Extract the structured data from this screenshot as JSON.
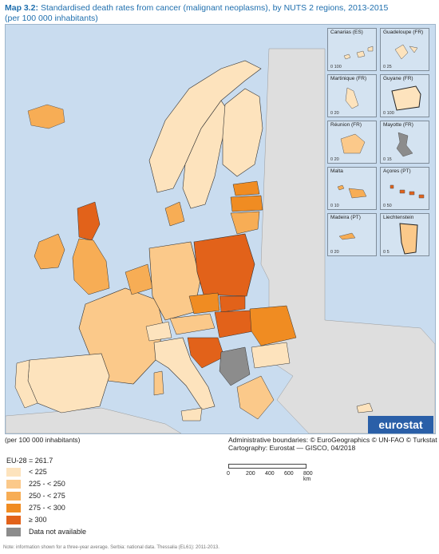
{
  "title_prefix": "Map 3.2:",
  "title_text": "Standardised death rates from cancer (malignant neoplasms), by NUTS 2 regions, 2013-2015",
  "subtitle": "(per 100 000 inhabitants)",
  "insets": [
    {
      "name": "Canarias (ES)",
      "scale": "0   100"
    },
    {
      "name": "Guadeloupe (FR)",
      "scale": "0   25"
    },
    {
      "name": "Martinique (FR)",
      "scale": "0   20"
    },
    {
      "name": "Guyane (FR)",
      "scale": "0   100"
    },
    {
      "name": "Réunion (FR)",
      "scale": "0   20"
    },
    {
      "name": "Mayotte (FR)",
      "scale": "0   15"
    },
    {
      "name": "Malta",
      "scale": "0   10"
    },
    {
      "name": "Açores (PT)",
      "scale": "0   50"
    },
    {
      "name": "Madeira (PT)",
      "scale": "0   20"
    },
    {
      "name": "Liechtenstein",
      "scale": "0   5"
    }
  ],
  "logo": "eurostat",
  "units_note": "(per 100 000 inhabitants)",
  "boundaries_note": "Administrative boundaries: © EuroGeographics © UN-FAO © Turkstat",
  "cartography_note": "Cartography: Eurostat — GISCO, 04/2018",
  "eu_average": "EU-28 = 261.7",
  "legend": [
    {
      "label": "< 225",
      "color": "#fde3bd"
    },
    {
      "label": "225 - < 250",
      "color": "#fbc98a"
    },
    {
      "label": "250 - < 275",
      "color": "#f7ad55"
    },
    {
      "label": "275 - < 300",
      "color": "#f08c22"
    },
    {
      "label": "≥ 300",
      "color": "#e2621a"
    },
    {
      "label": "Data not available",
      "color": "#8c8c8c"
    }
  ],
  "scale_labels": [
    "0",
    "200",
    "400",
    "600",
    "800 km"
  ],
  "footnote": "Note: information shown for a three-year average. Serbia: national data. Thessalia (EL61): 2011-2013.",
  "colors": {
    "sea": "#c9dcef",
    "non_eu": "#dedede",
    "border": "#222222"
  }
}
